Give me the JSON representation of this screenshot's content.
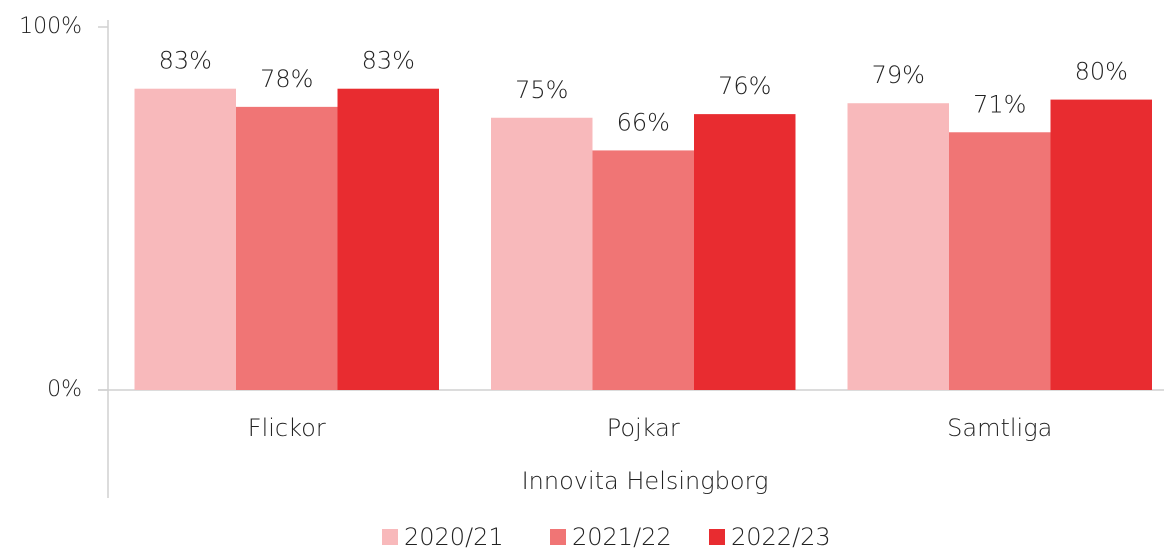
{
  "chart_data": {
    "type": "bar",
    "categories": [
      "Flickor",
      "Pojkar",
      "Samtliga"
    ],
    "xlabel": "Innovita Helsingborg",
    "series": [
      {
        "name": "2020/21",
        "color": "#f8b9bb",
        "values": [
          83,
          75,
          79
        ],
        "value_labels": [
          "83%",
          "75%",
          "79%"
        ]
      },
      {
        "name": "2021/22",
        "color": "#f07575",
        "values": [
          78,
          66,
          71
        ],
        "value_labels": [
          "78%",
          "66%",
          "71%"
        ]
      },
      {
        "name": "2022/23",
        "color": "#e82c30",
        "values": [
          83,
          76,
          80
        ],
        "value_labels": [
          "83%",
          "76%",
          "80%"
        ]
      }
    ],
    "ylim": [
      0,
      100
    ],
    "yticks": [
      {
        "value": 0,
        "label": "0%"
      },
      {
        "value": 100,
        "label": "100%"
      }
    ],
    "legend": "bottom"
  }
}
